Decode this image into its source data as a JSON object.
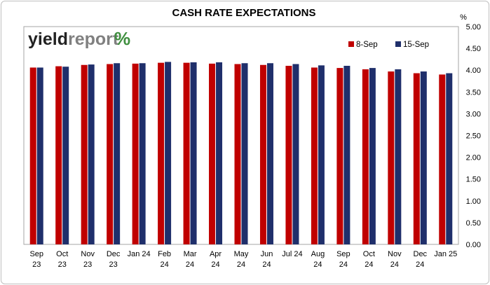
{
  "logo": {
    "part1": "yield",
    "part2": "report",
    "symbol": "%"
  },
  "colors": {
    "series1": "#c00000",
    "series2": "#1f2f6b",
    "logo_green": "#3f8f3f",
    "logo_red": "#c00000",
    "plot_border": "#a6a6a6",
    "grid": "#ffffff"
  },
  "chart_data": {
    "type": "bar",
    "title": "CASH RATE EXPECTATIONS",
    "ylabel": "%",
    "xlabel": "",
    "ylim": [
      0,
      5
    ],
    "yticks": [
      "0.00",
      "0.50",
      "1.00",
      "1.50",
      "2.00",
      "2.50",
      "3.00",
      "3.50",
      "4.00",
      "4.50",
      "5.00"
    ],
    "grid": false,
    "legend_position": "top-right",
    "categories": [
      [
        "Sep",
        "23"
      ],
      [
        "Oct",
        "23"
      ],
      [
        "Nov",
        "23"
      ],
      [
        "Dec",
        "23"
      ],
      [
        "Jan 24",
        ""
      ],
      [
        "Feb",
        "24"
      ],
      [
        "Mar",
        "24"
      ],
      [
        "Apr",
        "24"
      ],
      [
        "May",
        "24"
      ],
      [
        "Jun",
        "24"
      ],
      [
        "Jul 24",
        ""
      ],
      [
        "Aug",
        "24"
      ],
      [
        "Sep",
        "24"
      ],
      [
        "Oct",
        "24"
      ],
      [
        "Nov",
        "24"
      ],
      [
        "Dec",
        "24"
      ],
      [
        "Jan 25",
        ""
      ]
    ],
    "series": [
      {
        "name": "8-Sep",
        "values": [
          4.06,
          4.09,
          4.12,
          4.14,
          4.15,
          4.17,
          4.17,
          4.15,
          4.14,
          4.12,
          4.1,
          4.06,
          4.05,
          4.02,
          3.97,
          3.93,
          3.9
        ]
      },
      {
        "name": "15-Sep",
        "values": [
          4.06,
          4.08,
          4.13,
          4.16,
          4.16,
          4.19,
          4.18,
          4.18,
          4.16,
          4.16,
          4.14,
          4.11,
          4.1,
          4.05,
          4.02,
          3.97,
          3.93
        ]
      }
    ]
  }
}
